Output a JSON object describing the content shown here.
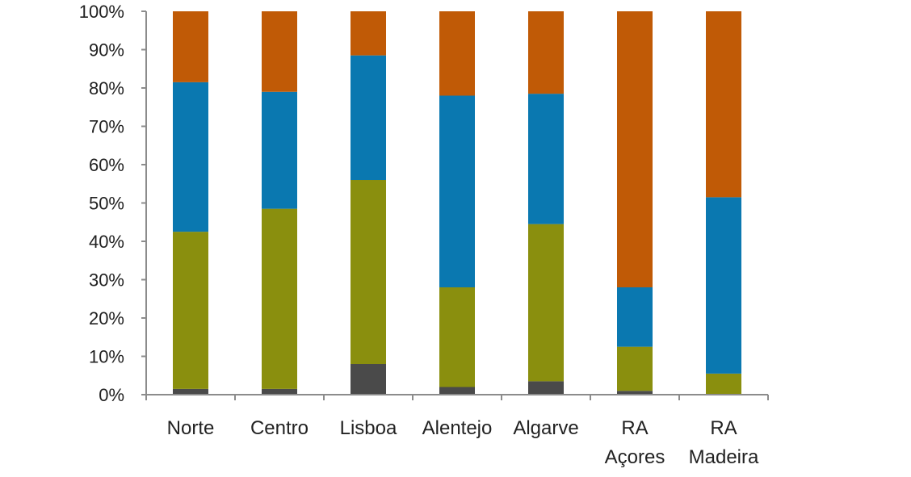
{
  "chart_data": {
    "type": "bar",
    "stacked": true,
    "categories": [
      [
        "Norte"
      ],
      [
        "Centro"
      ],
      [
        "Lisboa"
      ],
      [
        "Alentejo"
      ],
      [
        "Algarve"
      ],
      [
        "RA",
        "Açores"
      ],
      [
        "RA",
        "Madeira"
      ]
    ],
    "series": [
      {
        "color": "#4a4a4a",
        "values": [
          1.5,
          1.5,
          8,
          2,
          3.5,
          1,
          0
        ]
      },
      {
        "color": "#8a8f0e",
        "values": [
          41,
          47,
          48,
          26,
          41,
          11.5,
          5.5
        ]
      },
      {
        "color": "#0a78b0",
        "values": [
          39,
          30.5,
          32.5,
          50,
          34,
          15.5,
          46
        ]
      },
      {
        "color": "#c05a06",
        "values": [
          18.5,
          21,
          11.5,
          22,
          21.5,
          72,
          48.5
        ]
      }
    ],
    "ylim": [
      0,
      100
    ],
    "yticks": [
      "0%",
      "10%",
      "20%",
      "30%",
      "40%",
      "50%",
      "60%",
      "70%",
      "80%",
      "90%",
      "100%"
    ],
    "grid": false,
    "legend": "none",
    "title": "",
    "xlabel": "",
    "ylabel": ""
  }
}
